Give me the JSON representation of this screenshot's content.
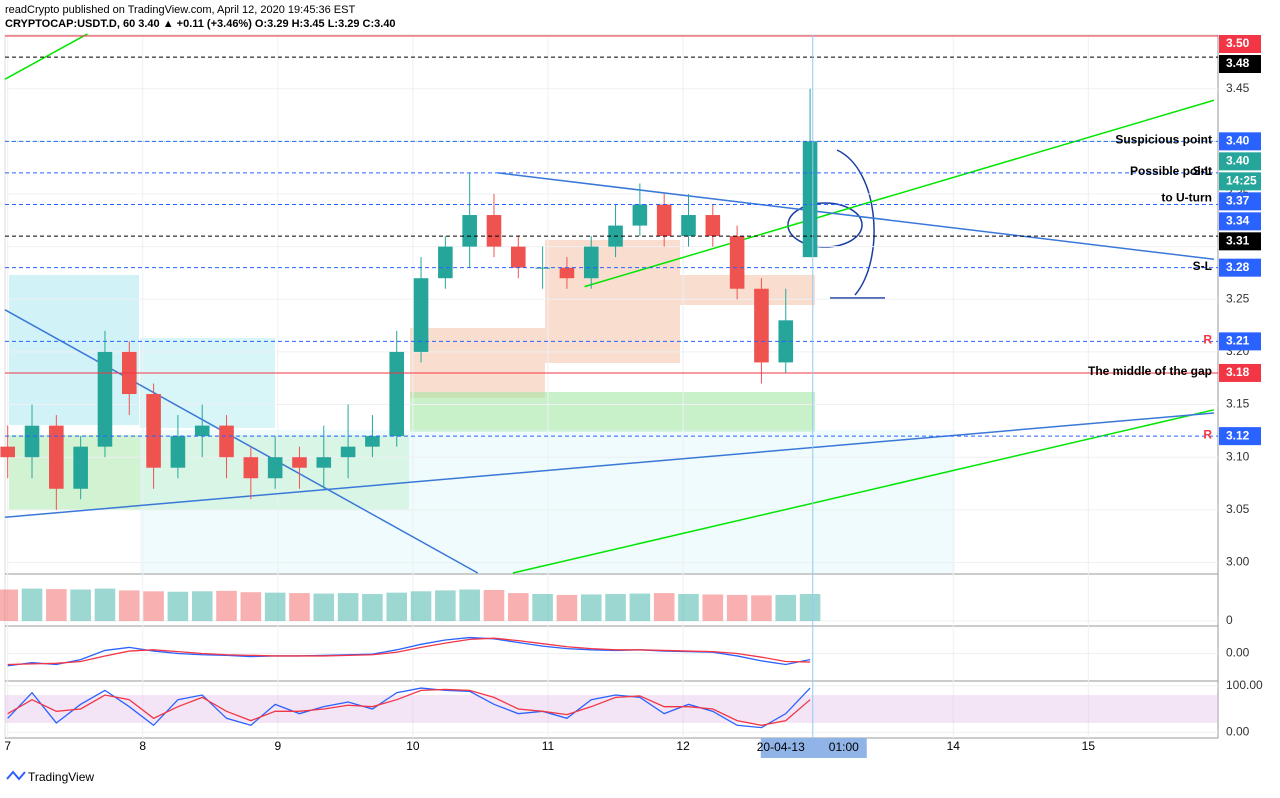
{
  "header": {
    "line1": "readCrypto published on TradingView.com, April 12, 2020 19:45:36 EST",
    "line2": "CRYPTOCAP:USDT.D, 60 3.40 ▲ +0.11 (+3.46%) O:3.29 H:3.45 L:3.29 C:3.40"
  },
  "footer": {
    "brand": "TradingView"
  },
  "chart_data": {
    "type": "candlestick",
    "xlim": [
      6.98,
      15.96
    ],
    "xticks": [
      7,
      8,
      9,
      10,
      11,
      12,
      14,
      15
    ],
    "cursor": {
      "x": 12.96,
      "date": "20-04-13",
      "time": "01:00"
    },
    "ylim": [
      2.99,
      3.501
    ],
    "yticks": [
      {
        "value": 3,
        "label": "3.00"
      },
      3.05,
      {
        "value": 3.1,
        "label": "3.10"
      },
      3.15,
      {
        "value": 3.2,
        "label": "3.20"
      },
      3.25,
      {
        "value": 3.3,
        "label": "3.30"
      },
      3.35,
      {
        "value": 3.4,
        "label": "3.40"
      },
      3.45
    ],
    "candles": {
      "up_color": "#26a69a",
      "down_color": "#ef5350",
      "x": [
        7.0,
        7.18,
        7.36,
        7.54,
        7.72,
        7.9,
        8.08,
        8.26,
        8.44,
        8.62,
        8.8,
        8.98,
        9.16,
        9.34,
        9.52,
        9.7,
        9.88,
        10.06,
        10.24,
        10.42,
        10.6,
        10.78,
        10.96,
        11.14,
        11.32,
        11.5,
        11.68,
        11.86,
        12.04,
        12.22,
        12.4,
        12.58,
        12.76,
        12.94
      ],
      "open": [
        3.11,
        3.1,
        3.13,
        3.07,
        3.11,
        3.2,
        3.16,
        3.09,
        3.12,
        3.13,
        3.1,
        3.08,
        3.1,
        3.09,
        3.1,
        3.11,
        3.12,
        3.2,
        3.27,
        3.3,
        3.33,
        3.3,
        3.28,
        3.28,
        3.27,
        3.3,
        3.32,
        3.34,
        3.31,
        3.33,
        3.31,
        3.26,
        3.19,
        3.29
      ],
      "high": [
        3.13,
        3.15,
        3.14,
        3.12,
        3.22,
        3.21,
        3.17,
        3.14,
        3.15,
        3.14,
        3.11,
        3.12,
        3.11,
        3.13,
        3.15,
        3.14,
        3.22,
        3.29,
        3.31,
        3.37,
        3.35,
        3.31,
        3.3,
        3.29,
        3.31,
        3.34,
        3.36,
        3.35,
        3.35,
        3.34,
        3.32,
        3.27,
        3.26,
        3.45
      ],
      "low": [
        3.08,
        3.08,
        3.05,
        3.06,
        3.1,
        3.14,
        3.07,
        3.08,
        3.1,
        3.08,
        3.06,
        3.07,
        3.07,
        3.07,
        3.08,
        3.1,
        3.11,
        3.19,
        3.26,
        3.28,
        3.29,
        3.27,
        3.26,
        3.26,
        3.26,
        3.29,
        3.31,
        3.3,
        3.3,
        3.3,
        3.25,
        3.17,
        3.18,
        3.29
      ],
      "close": [
        3.1,
        3.13,
        3.07,
        3.11,
        3.2,
        3.16,
        3.09,
        3.12,
        3.13,
        3.1,
        3.08,
        3.1,
        3.09,
        3.1,
        3.11,
        3.12,
        3.2,
        3.27,
        3.3,
        3.33,
        3.3,
        3.28,
        3.28,
        3.27,
        3.3,
        3.32,
        3.34,
        3.31,
        3.33,
        3.31,
        3.26,
        3.19,
        3.23,
        3.4
      ]
    },
    "volume": {
      "ylim": [
        0,
        100
      ],
      "yticks": [
        0
      ],
      "values": [
        70,
        72,
        71,
        70,
        72,
        68,
        66,
        65,
        66,
        67,
        64,
        63,
        62,
        61,
        62,
        60,
        63,
        66,
        68,
        70,
        69,
        62,
        60,
        58,
        59,
        60,
        61,
        62,
        60,
        59,
        58,
        57,
        58,
        60
      ]
    },
    "macd": {
      "ylim": [
        -0.04,
        0.04
      ],
      "yticks": [
        {
          "value": 0,
          "label": "0.00"
        }
      ],
      "color": "#2962ff",
      "signal_color": "#f23645",
      "values": [
        -0.02,
        -0.015,
        -0.018,
        -0.01,
        0.005,
        0.01,
        0.004,
        0,
        -0.002,
        -0.003,
        -0.005,
        -0.004,
        -0.004,
        -0.003,
        -0.002,
        -0.001,
        0.006,
        0.015,
        0.022,
        0.026,
        0.024,
        0.018,
        0.012,
        0.008,
        0.006,
        0.005,
        0.006,
        0.004,
        0.003,
        0.002,
        -0.004,
        -0.012,
        -0.018,
        -0.01
      ],
      "signal": [
        -0.018,
        -0.017,
        -0.016,
        -0.013,
        -0.004,
        0.004,
        0.006,
        0.003,
        0,
        -0.002,
        -0.003,
        -0.004,
        -0.004,
        -0.004,
        -0.003,
        -0.002,
        0.002,
        0.01,
        0.017,
        0.023,
        0.025,
        0.021,
        0.016,
        0.011,
        0.008,
        0.006,
        0.006,
        0.005,
        0.004,
        0.003,
        0,
        -0.006,
        -0.013,
        -0.014
      ]
    },
    "stochastic": {
      "ylim": [
        -8,
        108
      ],
      "yticks": [
        {
          "value": 0,
          "label": "0.00"
        },
        {
          "value": 100,
          "label": "100.00"
        }
      ],
      "k_color": "#2962ff",
      "d_color": "#f23645",
      "k": [
        30,
        85,
        20,
        60,
        90,
        55,
        15,
        70,
        80,
        30,
        15,
        60,
        40,
        55,
        65,
        50,
        85,
        95,
        90,
        88,
        60,
        40,
        45,
        30,
        70,
        80,
        75,
        40,
        60,
        45,
        15,
        10,
        40,
        95
      ],
      "d": [
        40,
        70,
        45,
        50,
        80,
        70,
        30,
        55,
        75,
        45,
        25,
        45,
        45,
        50,
        58,
        55,
        70,
        90,
        92,
        90,
        75,
        50,
        45,
        38,
        55,
        75,
        78,
        55,
        55,
        50,
        25,
        15,
        25,
        70
      ]
    },
    "levels": [
      {
        "value": 3.5,
        "label": "3.50",
        "color": "#f23645",
        "line": "solid"
      },
      {
        "value": 3.48,
        "label": "3.48",
        "color": "#000000",
        "line": "dash"
      },
      {
        "value": 3.4,
        "label": "3.40",
        "color": "#2962ff",
        "line": "dash"
      },
      {
        "value": 3.4,
        "label": "3.40",
        "color": "#26a69a",
        "line": "dot"
      },
      {
        "label": "14:25",
        "color": "#26a69a"
      },
      {
        "value": 3.37,
        "label": "3.37",
        "color": "#2962ff",
        "line": "dash"
      },
      {
        "value": 3.34,
        "label": "3.34",
        "color": "#2962ff",
        "line": "dash"
      },
      {
        "value": 3.31,
        "label": "3.31",
        "color": "#000000",
        "line": "dash"
      },
      {
        "value": 3.28,
        "label": "3.28",
        "color": "#2962ff",
        "line": "dash"
      },
      {
        "value": 3.21,
        "label": "3.21",
        "color": "#2962ff",
        "line": "dash"
      },
      {
        "value": 3.18,
        "label": "3.18",
        "color": "#f23645",
        "line": "solid"
      },
      {
        "value": 3.12,
        "label": "3.12",
        "color": "#2962ff",
        "line": "dash"
      }
    ],
    "annotations": [
      {
        "text": "Suspicious point",
        "price": 3.4,
        "color": "#000000"
      },
      {
        "text": "S-L",
        "price": 3.37,
        "color": "#000000"
      },
      {
        "text": "Possible point",
        "price": 3.37,
        "color": "#000000"
      },
      {
        "text": "to U-turn",
        "price": 3.345,
        "color": "#000000"
      },
      {
        "text": "S-L",
        "price": 3.28,
        "color": "#000000"
      },
      {
        "text": "R",
        "price": 3.21,
        "color": "#f23645"
      },
      {
        "text": "The middle of the gap",
        "price": 3.18,
        "color": "#000000"
      },
      {
        "text": "R",
        "price": 3.12,
        "color": "#f23645"
      }
    ],
    "trendlines": [
      {
        "color": "#00e600",
        "x": [
          6.98,
          7.59
        ],
        "y": [
          3.459,
          3.502
        ]
      },
      {
        "color": "#00e600",
        "x": [
          11.27,
          15.93
        ],
        "y": [
          3.262,
          3.439
        ]
      },
      {
        "color": "#00e600",
        "x": [
          10.74,
          15.93
        ],
        "y": [
          2.99,
          3.145
        ]
      },
      {
        "color": "#3a78d8",
        "x": [
          6.98,
          10.48
        ],
        "y": [
          3.24,
          2.99
        ]
      },
      {
        "color": "#3a78d8",
        "x": [
          6.98,
          15.93
        ],
        "y": [
          3.043,
          3.142
        ]
      },
      {
        "color": "#3a78d8",
        "x": [
          10.63,
          15.93
        ],
        "y": [
          3.37,
          3.288
        ]
      }
    ]
  }
}
